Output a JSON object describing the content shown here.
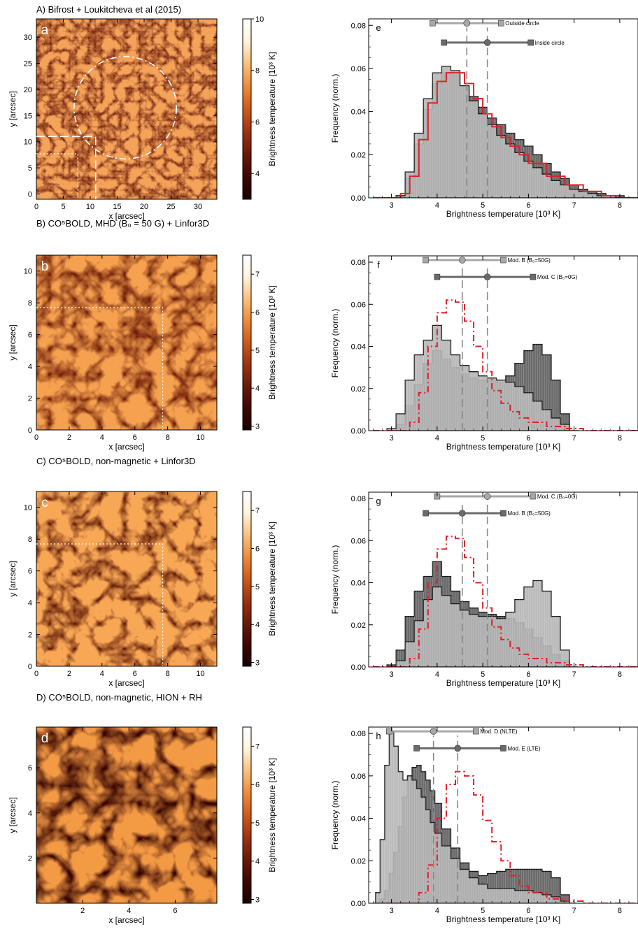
{
  "panels": [
    {
      "title": "A) Bifrost + Loukitcheva et al (2015)",
      "letter": "a",
      "xlabel": "x [arcsec]",
      "ylabel": "y [arcsec]",
      "xlim": [
        0,
        33.5
      ],
      "ylim": [
        -1,
        33.5
      ],
      "xticks": [
        "0",
        "5",
        "10",
        "15",
        "20",
        "25",
        "30"
      ],
      "yticks": [
        "0",
        "5",
        "10",
        "15",
        "20",
        "25",
        "30"
      ],
      "colorbar": {
        "label": "Brightness temperature [10³ K]",
        "range": [
          3,
          10
        ],
        "ticks": [
          "4",
          "6",
          "8",
          "10"
        ]
      },
      "colormap": [
        "#1a0000",
        "#400500",
        "#6b1a06",
        "#a0320c",
        "#d05a18",
        "#f08a3a",
        "#fbc07a",
        "#fff3dd",
        "#ffffff"
      ],
      "overlay": "circle"
    },
    {
      "title": "B) CO⁵BOLD, MHD (B₀ = 50 G) + Linfor3D",
      "letter": "b",
      "xlabel": "x [arcsec]",
      "ylabel": "y [arcsec]",
      "xlim": [
        0,
        11
      ],
      "ylim": [
        0,
        11
      ],
      "xticks": [
        "0",
        "2",
        "4",
        "6",
        "8",
        "10"
      ],
      "yticks": [
        "0",
        "2",
        "4",
        "6",
        "8",
        "10"
      ],
      "colorbar": {
        "label": "Brightness temperature [10³ K]",
        "range": [
          2.9,
          7.5
        ],
        "ticks": [
          "3",
          "4",
          "5",
          "6",
          "7"
        ]
      },
      "colormap": [
        "#1a0000",
        "#400500",
        "#6b1a06",
        "#a0320c",
        "#d05a18",
        "#f08a3a",
        "#fbc07a",
        "#fff3dd",
        "#ffffff"
      ],
      "overlay": "cross"
    },
    {
      "title": "C) CO⁵BOLD, non-magnetic + Linfor3D",
      "letter": "c",
      "xlabel": "x [arcsec]",
      "ylabel": "y [arcsec]",
      "xlim": [
        0,
        11
      ],
      "ylim": [
        0,
        11
      ],
      "xticks": [
        "0",
        "2",
        "4",
        "6",
        "8",
        "10"
      ],
      "yticks": [
        "0",
        "2",
        "4",
        "6",
        "8",
        "10"
      ],
      "colorbar": {
        "label": "Brightness temperature [10³ K]",
        "range": [
          2.9,
          7.5
        ],
        "ticks": [
          "3",
          "4",
          "5",
          "6",
          "7"
        ]
      },
      "colormap": [
        "#1a0000",
        "#400500",
        "#6b1a06",
        "#a0320c",
        "#d05a18",
        "#f08a3a",
        "#fbc07a",
        "#fff3dd",
        "#ffffff"
      ],
      "overlay": "cross"
    },
    {
      "title": "D) CO⁵BOLD, non-magnetic, HION + RH",
      "letter": "d",
      "xlabel": "x [arcsec]",
      "ylabel": "y [arcsec]",
      "xlim": [
        0,
        7.8
      ],
      "ylim": [
        0,
        7.8
      ],
      "xticks": [
        "2",
        "4",
        "6"
      ],
      "yticks": [
        "2",
        "4",
        "6"
      ],
      "colorbar": {
        "label": "Brightness temperature [10³ K]",
        "range": [
          2.9,
          7.5
        ],
        "ticks": [
          "3",
          "4",
          "5",
          "6",
          "7"
        ]
      },
      "colormap": [
        "#1a0000",
        "#400500",
        "#6b1a06",
        "#a0320c",
        "#d05a18",
        "#f08a3a",
        "#fbc07a",
        "#fff3dd",
        "#ffffff"
      ],
      "overlay": "none"
    }
  ],
  "chart_data": [
    {
      "type": "bar",
      "letter": "e",
      "xlabel": "Brightness temperature [10³ K]",
      "ylabel": "Frequency (norm.)",
      "xlim": [
        2.5,
        8.4
      ],
      "ylim": [
        0,
        0.083
      ],
      "xticks": [
        "3",
        "4",
        "5",
        "6",
        "7",
        "8"
      ],
      "yticks": [
        "0.00",
        "0.02",
        "0.04",
        "0.06",
        "0.08"
      ],
      "series": [
        {
          "name": "Outside circle",
          "x": [
            3.0,
            3.2,
            3.4,
            3.6,
            3.8,
            4.0,
            4.2,
            4.4,
            4.6,
            4.8,
            5.0,
            5.2,
            5.4,
            5.6,
            5.8,
            6.0,
            6.2,
            6.4,
            6.6,
            6.8,
            7.0,
            7.2,
            7.4,
            7.6,
            7.8,
            8.0,
            8.2
          ],
          "values": [
            0.0,
            0.001,
            0.012,
            0.03,
            0.046,
            0.058,
            0.061,
            0.059,
            0.052,
            0.045,
            0.039,
            0.034,
            0.029,
            0.025,
            0.021,
            0.017,
            0.014,
            0.011,
            0.008,
            0.006,
            0.004,
            0.003,
            0.002,
            0.001,
            0.001,
            0.0,
            0.0
          ]
        },
        {
          "name": "Inside circle",
          "x": [
            3.0,
            3.2,
            3.4,
            3.6,
            3.8,
            4.0,
            4.2,
            4.4,
            4.6,
            4.8,
            5.0,
            5.2,
            5.4,
            5.6,
            5.8,
            6.0,
            6.2,
            6.4,
            6.6,
            6.8,
            7.0,
            7.2,
            7.4,
            7.6,
            7.8,
            8.0,
            8.2
          ],
          "values": [
            0.0,
            0.001,
            0.009,
            0.025,
            0.041,
            0.053,
            0.058,
            0.057,
            0.052,
            0.047,
            0.042,
            0.037,
            0.034,
            0.03,
            0.027,
            0.024,
            0.02,
            0.016,
            0.012,
            0.009,
            0.006,
            0.004,
            0.003,
            0.002,
            0.001,
            0.001,
            0.0
          ]
        }
      ],
      "red_curve": {
        "style": "solid",
        "x": [
          2.6,
          3.0,
          3.2,
          3.4,
          3.6,
          3.8,
          4.0,
          4.2,
          4.4,
          4.6,
          4.8,
          5.0,
          5.2,
          5.4,
          5.6,
          5.8,
          6.0,
          6.4,
          6.8,
          7.2,
          7.6,
          8.0,
          8.4
        ],
        "values": [
          0.0,
          0.0,
          0.002,
          0.01,
          0.027,
          0.044,
          0.054,
          0.058,
          0.058,
          0.053,
          0.046,
          0.039,
          0.033,
          0.028,
          0.024,
          0.02,
          0.016,
          0.01,
          0.006,
          0.003,
          0.001,
          0.0,
          0.0
        ]
      },
      "errorbars": [
        {
          "label": "Outside circle",
          "y": 0.081,
          "lo": 3.9,
          "mid": 4.65,
          "hi": 5.4,
          "color": "#a8a8a8"
        },
        {
          "label": "Inside circle",
          "y": 0.072,
          "lo": 4.15,
          "mid": 5.1,
          "hi": 6.05,
          "color": "#6a6a6a"
        }
      ],
      "vlines": [
        4.65,
        5.1
      ]
    },
    {
      "type": "bar",
      "letter": "f",
      "xlabel": "Brightness temperature [10³ K]",
      "ylabel": "Frequency (norm.)",
      "xlim": [
        2.5,
        8.4
      ],
      "ylim": [
        0,
        0.083
      ],
      "xticks": [
        "3",
        "4",
        "5",
        "6",
        "7",
        "8"
      ],
      "yticks": [
        "0.00",
        "0.02",
        "0.04",
        "0.06",
        "0.08"
      ],
      "series": [
        {
          "name": "Mod. B (B₀=50G)",
          "x": [
            3.0,
            3.2,
            3.4,
            3.6,
            3.8,
            4.0,
            4.2,
            4.4,
            4.6,
            4.8,
            5.0,
            5.2,
            5.4,
            5.6,
            5.8,
            6.0,
            6.2,
            6.4,
            6.6,
            6.8,
            7.0
          ],
          "values": [
            0.001,
            0.008,
            0.024,
            0.036,
            0.043,
            0.05,
            0.043,
            0.036,
            0.031,
            0.028,
            0.026,
            0.025,
            0.024,
            0.023,
            0.021,
            0.018,
            0.014,
            0.01,
            0.006,
            0.003,
            0.0
          ]
        },
        {
          "name": "Mod. C (B₀=0G)",
          "x": [
            3.0,
            3.2,
            3.4,
            3.6,
            3.8,
            4.0,
            4.2,
            4.4,
            4.6,
            4.8,
            5.0,
            5.2,
            5.4,
            5.6,
            5.8,
            6.0,
            6.2,
            6.4,
            6.6,
            6.8,
            7.0
          ],
          "values": [
            0.0,
            0.003,
            0.012,
            0.022,
            0.032,
            0.038,
            0.034,
            0.03,
            0.027,
            0.025,
            0.024,
            0.024,
            0.023,
            0.026,
            0.032,
            0.038,
            0.041,
            0.036,
            0.024,
            0.008,
            0.0
          ]
        }
      ],
      "red_curve": {
        "style": "dashdot",
        "x": [
          2.6,
          3.2,
          3.4,
          3.6,
          3.8,
          4.0,
          4.2,
          4.4,
          4.6,
          4.8,
          5.0,
          5.2,
          5.4,
          5.6,
          5.8,
          6.0,
          6.4,
          6.8,
          7.2,
          7.6,
          8.0,
          8.4
        ],
        "values": [
          0.0,
          0.0,
          0.004,
          0.018,
          0.04,
          0.056,
          0.062,
          0.061,
          0.052,
          0.04,
          0.028,
          0.019,
          0.013,
          0.009,
          0.006,
          0.004,
          0.002,
          0.001,
          0.0,
          0.0,
          0.0,
          0.0
        ]
      },
      "errorbars": [
        {
          "label": "Mod. B (B₀=50G)",
          "y": 0.081,
          "lo": 3.75,
          "mid": 4.55,
          "hi": 5.45,
          "color": "#a8a8a8"
        },
        {
          "label": "Mod. C (B₀=0G)",
          "y": 0.073,
          "lo": 4.0,
          "mid": 5.1,
          "hi": 6.1,
          "color": "#6a6a6a"
        }
      ],
      "vlines": [
        4.55,
        5.1
      ]
    },
    {
      "type": "bar",
      "letter": "g",
      "xlabel": "Brightness temperature [10³ K]",
      "ylabel": "Frequency (norm.)",
      "xlim": [
        2.5,
        8.4
      ],
      "ylim": [
        0,
        0.083
      ],
      "xticks": [
        "3",
        "4",
        "5",
        "6",
        "7",
        "8"
      ],
      "yticks": [
        "0.00",
        "0.02",
        "0.04",
        "0.06",
        "0.08"
      ],
      "series": [
        {
          "name": "Mod. C (B₀=0G)",
          "x": [
            3.0,
            3.2,
            3.4,
            3.6,
            3.8,
            4.0,
            4.2,
            4.4,
            4.6,
            4.8,
            5.0,
            5.2,
            5.4,
            5.6,
            5.8,
            6.0,
            6.2,
            6.4,
            6.6,
            6.8,
            7.0
          ],
          "values": [
            0.0,
            0.003,
            0.012,
            0.022,
            0.032,
            0.038,
            0.034,
            0.03,
            0.027,
            0.025,
            0.024,
            0.024,
            0.023,
            0.026,
            0.032,
            0.038,
            0.041,
            0.036,
            0.024,
            0.008,
            0.0
          ]
        },
        {
          "name": "Mod. B (B₀=50G)",
          "x": [
            3.0,
            3.2,
            3.4,
            3.6,
            3.8,
            4.0,
            4.2,
            4.4,
            4.6,
            4.8,
            5.0,
            5.2,
            5.4,
            5.6,
            5.8,
            6.0,
            6.2,
            6.4,
            6.6,
            6.8,
            7.0
          ],
          "values": [
            0.001,
            0.008,
            0.024,
            0.036,
            0.043,
            0.05,
            0.043,
            0.036,
            0.031,
            0.028,
            0.026,
            0.025,
            0.024,
            0.023,
            0.021,
            0.018,
            0.014,
            0.01,
            0.006,
            0.003,
            0.0
          ]
        }
      ],
      "red_curve": {
        "style": "dashdot",
        "x": [
          2.6,
          3.2,
          3.4,
          3.6,
          3.8,
          4.0,
          4.2,
          4.4,
          4.6,
          4.8,
          5.0,
          5.2,
          5.4,
          5.6,
          5.8,
          6.0,
          6.4,
          6.8,
          7.2,
          7.6,
          8.0,
          8.4
        ],
        "values": [
          0.0,
          0.0,
          0.004,
          0.018,
          0.04,
          0.056,
          0.062,
          0.061,
          0.052,
          0.04,
          0.028,
          0.019,
          0.013,
          0.009,
          0.006,
          0.004,
          0.002,
          0.001,
          0.0,
          0.0,
          0.0,
          0.0
        ]
      },
      "errorbars": [
        {
          "label": "Mod. C (B₀=0G)",
          "y": 0.081,
          "lo": 4.0,
          "mid": 5.1,
          "hi": 6.1,
          "color": "#a8a8a8"
        },
        {
          "label": "Mod. B (B₀=50G)",
          "y": 0.073,
          "lo": 3.75,
          "mid": 4.55,
          "hi": 5.45,
          "color": "#6a6a6a"
        }
      ],
      "vlines": [
        4.55,
        5.1
      ]
    },
    {
      "type": "bar",
      "letter": "h",
      "xlabel": "Brightness temperature [10³ K]",
      "ylabel": "Frequency (norm.)",
      "xlim": [
        2.5,
        8.4
      ],
      "ylim": [
        0,
        0.083
      ],
      "xticks": [
        "3",
        "4",
        "5",
        "6",
        "7",
        "8"
      ],
      "yticks": [
        "0.00",
        "0.02",
        "0.04",
        "0.06",
        "0.08"
      ],
      "series": [
        {
          "name": "Mod. D (NLTE)",
          "x": [
            2.7,
            2.8,
            2.9,
            3.0,
            3.1,
            3.2,
            3.3,
            3.4,
            3.5,
            3.6,
            3.7,
            3.8,
            3.9,
            4.0,
            4.2,
            4.4,
            4.6,
            4.8,
            5.0,
            5.2,
            5.4,
            5.6,
            5.8,
            6.0,
            6.2,
            6.4,
            6.6,
            6.8,
            7.0
          ],
          "values": [
            0.005,
            0.03,
            0.065,
            0.081,
            0.074,
            0.062,
            0.058,
            0.06,
            0.058,
            0.054,
            0.05,
            0.044,
            0.038,
            0.033,
            0.027,
            0.021,
            0.016,
            0.012,
            0.009,
            0.007,
            0.007,
            0.007,
            0.006,
            0.006,
            0.005,
            0.004,
            0.003,
            0.001,
            0.0
          ]
        },
        {
          "name": "Mod. E (LTE)",
          "x": [
            2.7,
            2.8,
            2.9,
            3.0,
            3.1,
            3.2,
            3.3,
            3.4,
            3.5,
            3.6,
            3.7,
            3.8,
            3.9,
            4.0,
            4.2,
            4.4,
            4.6,
            4.8,
            5.0,
            5.2,
            5.4,
            5.6,
            5.8,
            6.0,
            6.2,
            6.4,
            6.6,
            6.8,
            7.0
          ],
          "values": [
            0.0,
            0.002,
            0.006,
            0.014,
            0.024,
            0.036,
            0.05,
            0.06,
            0.064,
            0.065,
            0.062,
            0.058,
            0.053,
            0.047,
            0.035,
            0.026,
            0.019,
            0.015,
            0.013,
            0.014,
            0.015,
            0.016,
            0.016,
            0.016,
            0.016,
            0.015,
            0.012,
            0.004,
            0.0
          ]
        }
      ],
      "red_curve": {
        "style": "dashdot",
        "x": [
          2.6,
          3.4,
          3.6,
          3.8,
          4.0,
          4.2,
          4.4,
          4.6,
          4.8,
          5.0,
          5.2,
          5.4,
          5.6,
          5.8,
          6.0,
          6.4,
          6.8,
          7.2,
          7.6,
          8.0,
          8.4
        ],
        "values": [
          0.0,
          0.0,
          0.005,
          0.018,
          0.04,
          0.056,
          0.062,
          0.06,
          0.051,
          0.039,
          0.029,
          0.02,
          0.013,
          0.008,
          0.005,
          0.002,
          0.001,
          0.0,
          0.0,
          0.0,
          0.0
        ]
      },
      "errorbars": [
        {
          "label": "Mod. D (NLTE)",
          "y": 0.081,
          "lo": 2.95,
          "mid": 3.92,
          "hi": 4.85,
          "color": "#a8a8a8"
        },
        {
          "label": "Mod. E (LTE)",
          "y": 0.073,
          "lo": 3.55,
          "mid": 4.45,
          "hi": 5.45,
          "color": "#6a6a6a"
        }
      ],
      "vlines": [
        3.92,
        4.45
      ]
    }
  ]
}
